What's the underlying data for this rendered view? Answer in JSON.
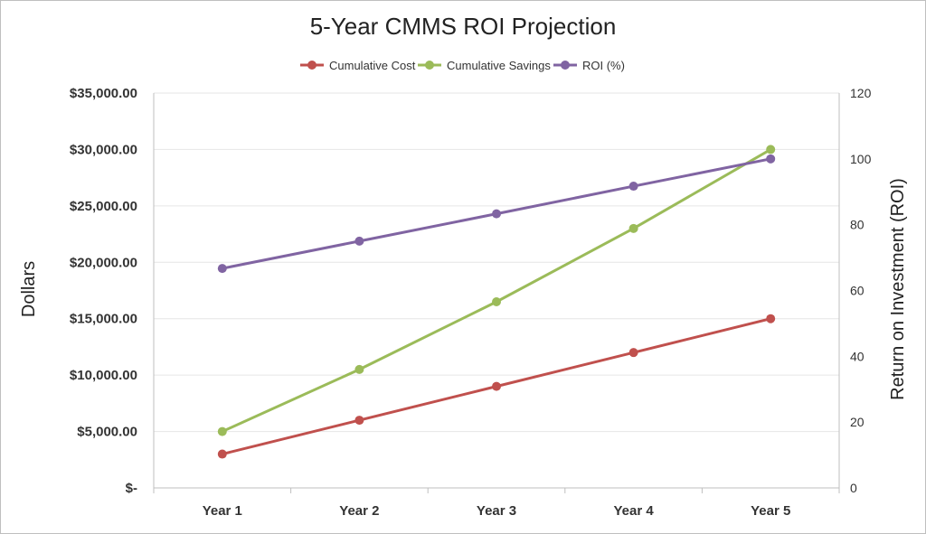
{
  "chart_data": {
    "type": "line",
    "title": "5-Year CMMS ROI Projection",
    "categories": [
      "Year 1",
      "Year 2",
      "Year 3",
      "Year 4",
      "Year 5"
    ],
    "ylabel": "Dollars",
    "y2label": "Return on Investment (ROI)",
    "ylim": [
      0,
      35000
    ],
    "y2lim": [
      0,
      120
    ],
    "yticks": [
      "$-",
      "$5,000.00",
      "$10,000.00",
      "$15,000.00",
      "$20,000.00",
      "$25,000.00",
      "$30,000.00",
      "$35,000.00"
    ],
    "y2ticks": [
      "0",
      "20",
      "40",
      "60",
      "80",
      "100",
      "120"
    ],
    "grid": true,
    "legend_position": "top-center",
    "series": [
      {
        "name": "Cumulative Cost",
        "axis": "left",
        "color": "#c0504d",
        "values": [
          3000,
          6000,
          9000,
          12000,
          15000
        ]
      },
      {
        "name": "Cumulative Savings",
        "axis": "left",
        "color": "#9bbb59",
        "values": [
          5000,
          10500,
          16500,
          23000,
          30000
        ]
      },
      {
        "name": "ROI (%)",
        "axis": "right",
        "color": "#8064a2",
        "values": [
          66.7,
          75,
          83.3,
          91.7,
          100
        ]
      }
    ]
  }
}
